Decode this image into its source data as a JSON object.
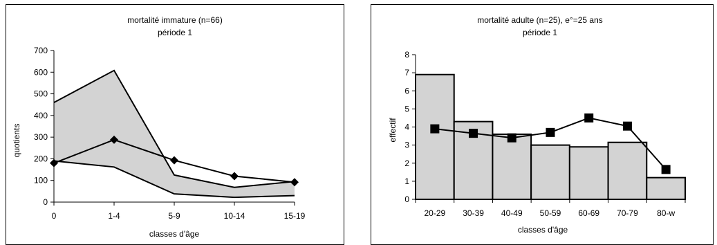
{
  "chart_data": [
    {
      "type": "line",
      "title": "mortalité immature (n=66)",
      "subtitle": "période 1",
      "xlabel": "classes d'âge",
      "ylabel": "quotients",
      "categories": [
        "0",
        "1-4",
        "5-9",
        "10-14",
        "15-19"
      ],
      "ylim": [
        0,
        700
      ],
      "yticks": [
        "0",
        "100",
        "200",
        "300",
        "400",
        "500",
        "600",
        "700"
      ],
      "grid": false,
      "band": {
        "upper": [
          460,
          608,
          125,
          68,
          95
        ],
        "lower": [
          190,
          162,
          38,
          22,
          30
        ],
        "color": "#d3d3d3"
      },
      "series": [
        {
          "values": [
            180,
            288,
            193,
            120,
            92
          ],
          "marker": "diamond",
          "color": "#000000"
        }
      ]
    },
    {
      "type": "bar",
      "title": "mortalité adulte (n=25), e°=25 ans",
      "subtitle": "période 1",
      "xlabel": "classes d'âge",
      "ylabel": "effectif",
      "categories": [
        "20-29",
        "30-39",
        "40-49",
        "50-59",
        "60-69",
        "70-79",
        "80-w"
      ],
      "ylim": [
        0,
        8
      ],
      "yticks": [
        "0",
        "1",
        "2",
        "3",
        "4",
        "5",
        "6",
        "7",
        "8"
      ],
      "grid": false,
      "bar_color": "#d3d3d3",
      "values": [
        6.9,
        4.3,
        3.6,
        3.0,
        2.9,
        3.15,
        1.2
      ],
      "line_series": {
        "values": [
          3.9,
          3.65,
          3.4,
          3.7,
          4.5,
          4.05,
          1.65
        ],
        "marker": "square",
        "color": "#000000"
      }
    }
  ]
}
